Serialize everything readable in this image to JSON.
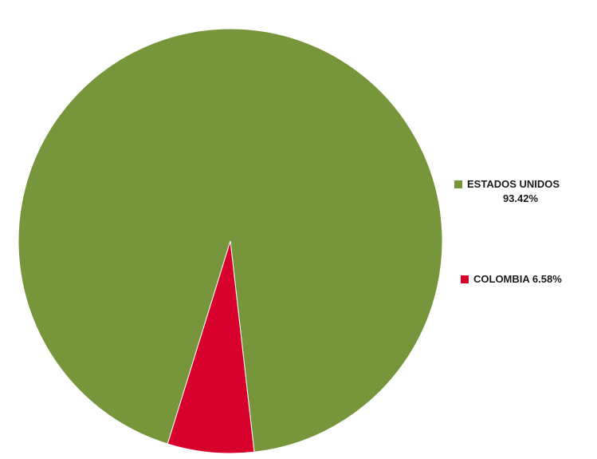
{
  "chart_data": {
    "type": "pie",
    "title": "",
    "slices": [
      {
        "name": "ESTADOS UNIDOS",
        "value": 93.42,
        "label": "93.42%",
        "color": "#77963B"
      },
      {
        "name": "COLOMBIA",
        "value": 6.58,
        "label": "6.58%",
        "color": "#D7002C"
      }
    ],
    "legend_position": "right"
  }
}
